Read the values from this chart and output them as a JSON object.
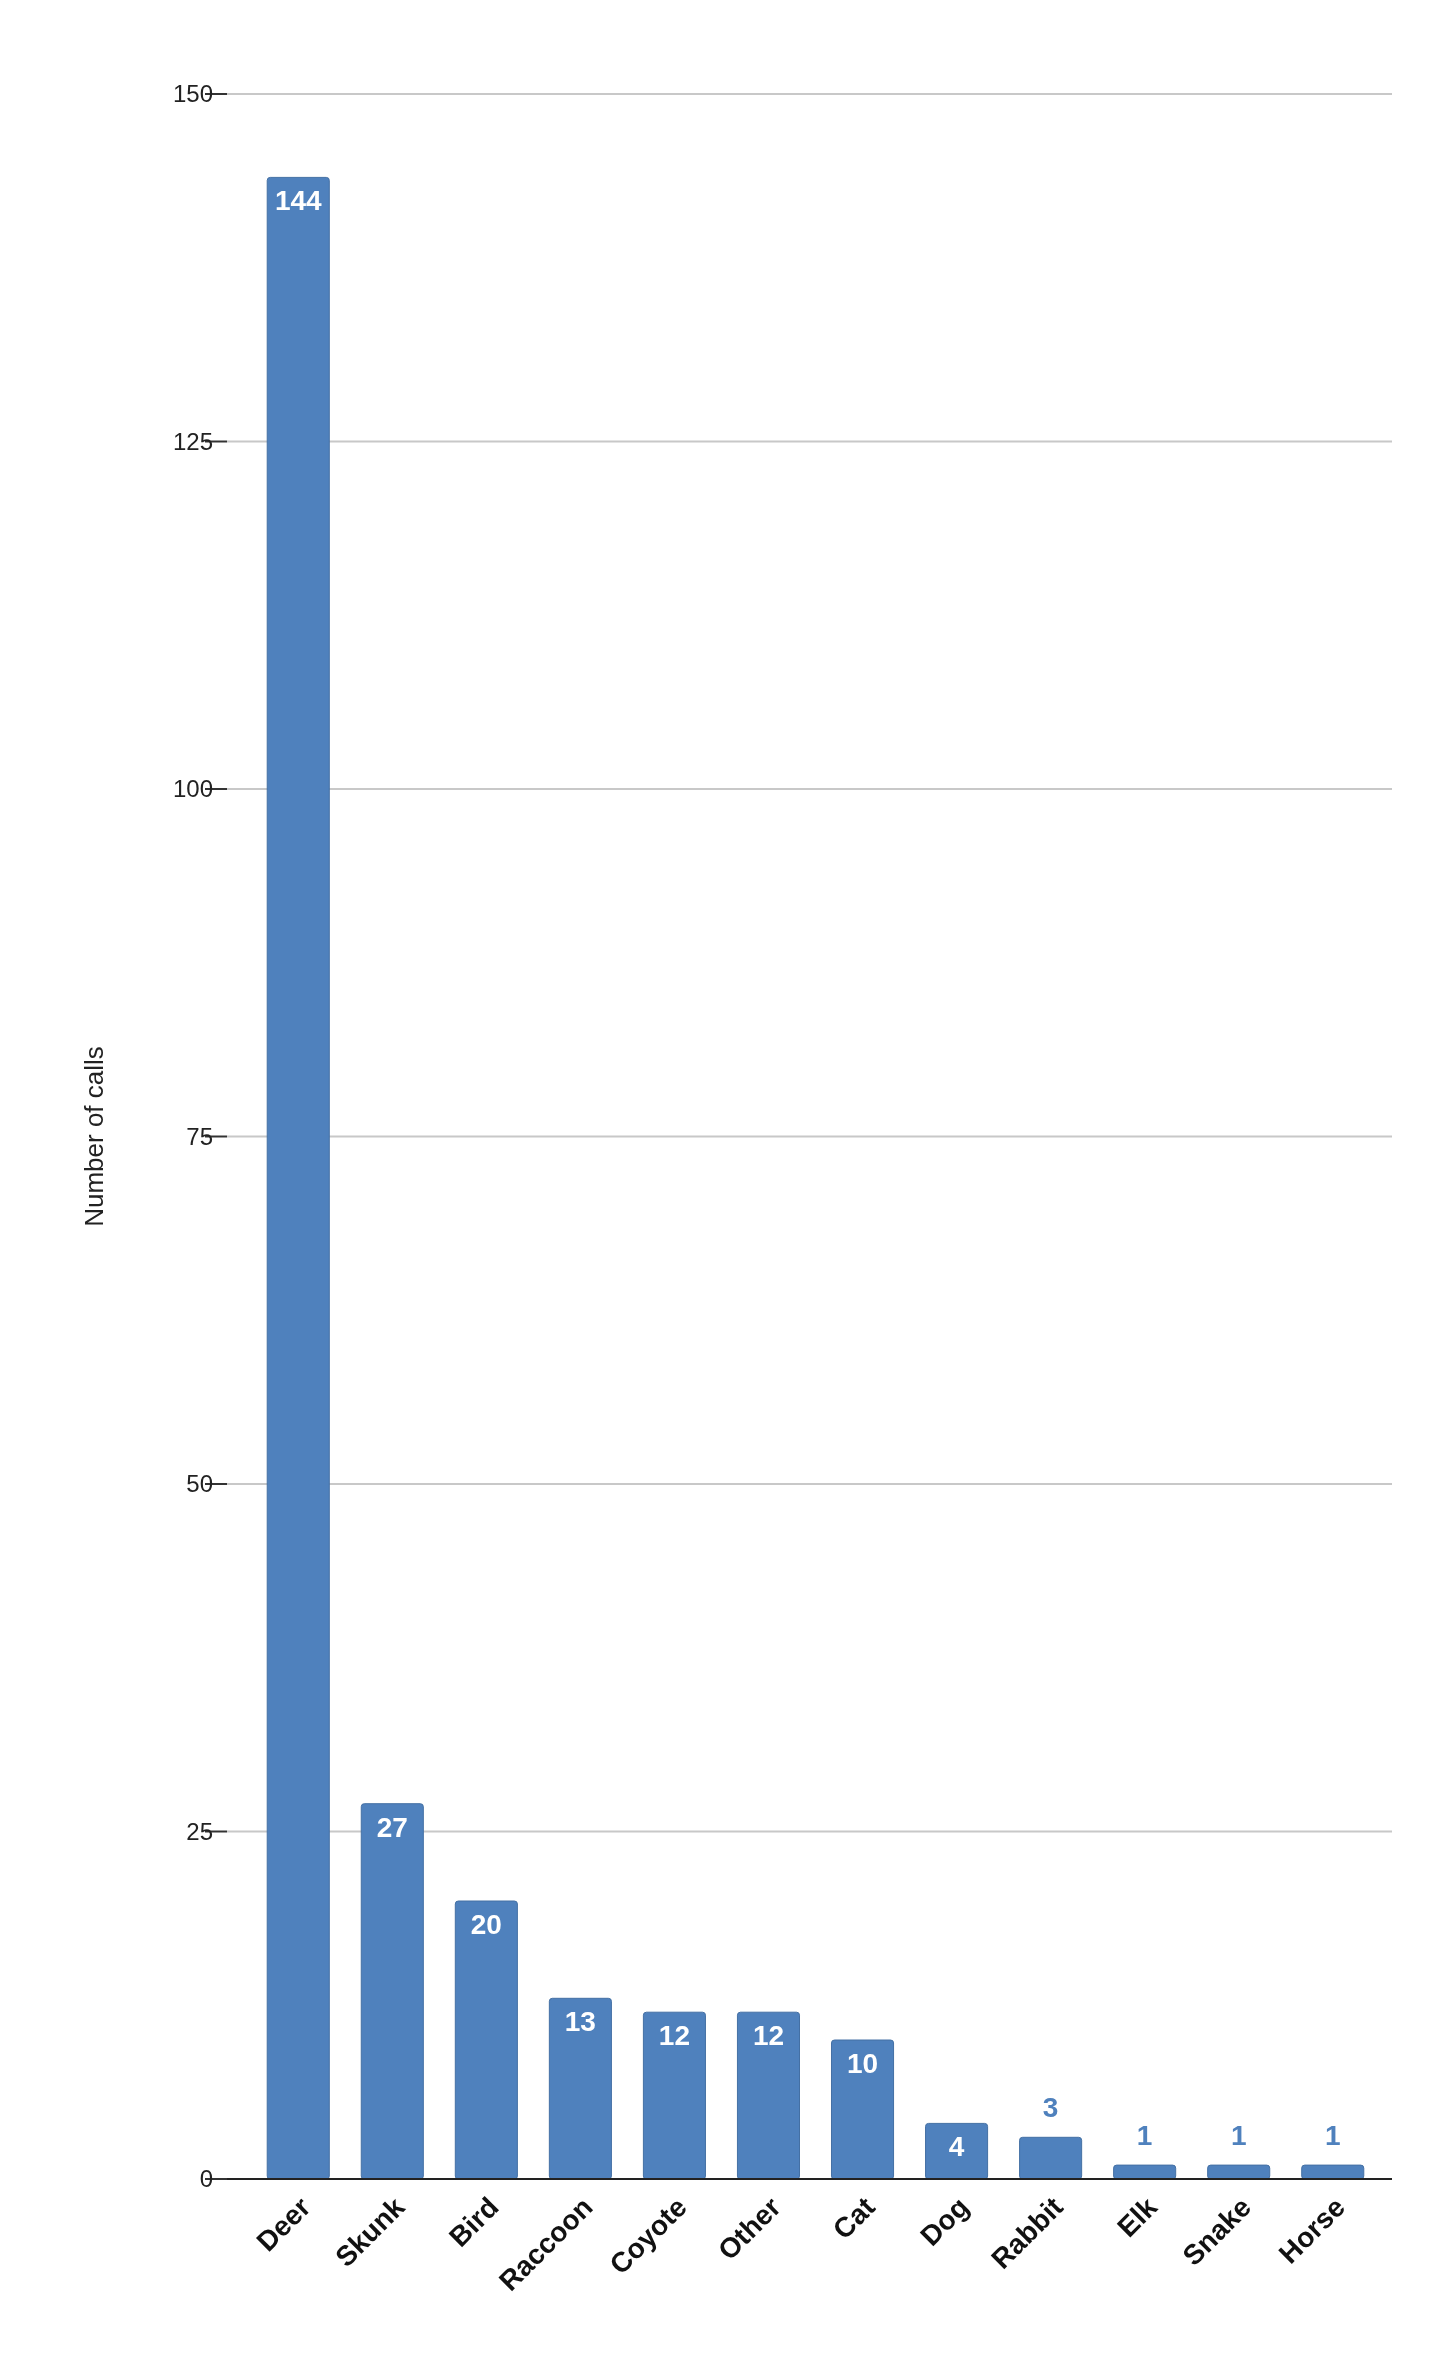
{
  "chart_data": {
    "type": "bar",
    "ylabel": "Number of calls",
    "categories": [
      "Deer",
      "Skunk",
      "Bird",
      "Raccoon",
      "Coyote",
      "Other",
      "Cat",
      "Dog",
      "Rabbit",
      "Elk",
      "Snake",
      "Horse"
    ],
    "values": [
      144,
      27,
      20,
      13,
      12,
      12,
      10,
      4,
      3,
      1,
      1,
      1
    ],
    "color": "#4f81bd",
    "ylim": [
      0,
      150
    ],
    "yticks": [
      0,
      25,
      50,
      75,
      100,
      125,
      150
    ],
    "grid": "y",
    "data_labels": true
  }
}
